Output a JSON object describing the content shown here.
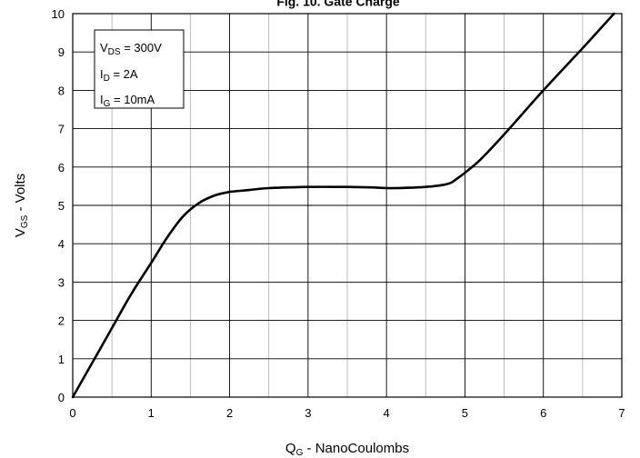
{
  "chart_data": {
    "type": "line",
    "title": "Fig. 10. Gate Charge",
    "xlabel": {
      "main": "Q",
      "sub": "G",
      "rest": " - NanoCoulombs"
    },
    "ylabel": {
      "main": "V",
      "sub": "GS",
      "rest": " - Volts"
    },
    "xlim": [
      0,
      7
    ],
    "ylim": [
      0,
      10
    ],
    "x_ticks": [
      "0",
      "1",
      "2",
      "3",
      "4",
      "5",
      "6",
      "7"
    ],
    "y_ticks": [
      "0",
      "1",
      "2",
      "3",
      "4",
      "5",
      "6",
      "7",
      "8",
      "9",
      "10"
    ],
    "grid": true,
    "legend": [
      {
        "main": "V",
        "sub": "DS",
        "rest": " = 300V"
      },
      {
        "main": "I",
        "sub": "D",
        "rest": " = 2A"
      },
      {
        "main": "I",
        "sub": "G",
        "rest": " = 10mA"
      }
    ],
    "legend_position": "top-left",
    "series": [
      {
        "x": [
          0,
          0.25,
          0.5,
          0.75,
          1.0,
          1.2,
          1.4,
          1.6,
          1.8,
          2.0,
          2.25,
          2.5,
          3.0,
          3.5,
          3.8,
          4.0,
          4.3,
          4.6,
          4.8,
          4.9,
          5.0,
          5.2,
          5.5,
          6.0,
          6.5,
          6.9
        ],
        "y": [
          0,
          0.9,
          1.8,
          2.7,
          3.5,
          4.15,
          4.7,
          5.05,
          5.25,
          5.35,
          5.4,
          5.45,
          5.48,
          5.48,
          5.47,
          5.45,
          5.46,
          5.5,
          5.57,
          5.7,
          5.85,
          6.2,
          6.85,
          8.0,
          9.1,
          10.0
        ]
      }
    ]
  }
}
